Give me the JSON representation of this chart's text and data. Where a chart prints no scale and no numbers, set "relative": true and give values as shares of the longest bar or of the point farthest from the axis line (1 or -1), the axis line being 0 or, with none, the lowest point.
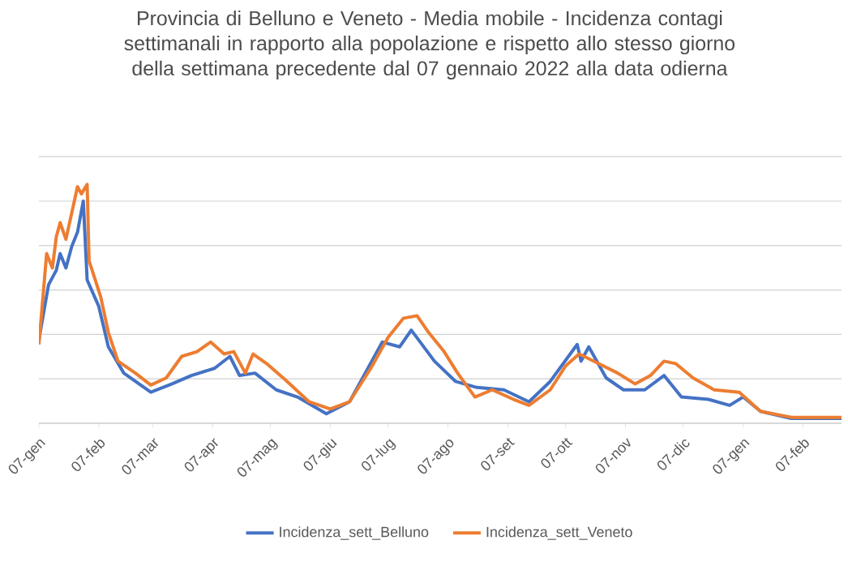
{
  "chart_data": {
    "type": "line",
    "title": "Provincia di Belluno e Veneto -  Media mobile - Incidenza contagi settimanali in rapporto alla popolazione e rispetto allo stesso giorno della settimana precedente dal 07 gennaio 2022 alla data odierna",
    "relative": true,
    "grid": "y",
    "legend": "bottom",
    "line_style": "solid",
    "marker": "none",
    "xlim": [
      "2022-01-07",
      "2023-02-27"
    ],
    "xticks": [
      {
        "value": "2022-01-07",
        "label": "07-gen"
      },
      {
        "value": "2022-02-07",
        "label": "07-feb"
      },
      {
        "value": "2022-03-07",
        "label": "07-mar"
      },
      {
        "value": "2022-04-07",
        "label": "07-apr"
      },
      {
        "value": "2022-05-07",
        "label": "07-mag"
      },
      {
        "value": "2022-06-07",
        "label": "07-giu"
      },
      {
        "value": "2022-07-07",
        "label": "07-lug"
      },
      {
        "value": "2022-08-07",
        "label": "07-ago"
      },
      {
        "value": "2022-09-07",
        "label": "07-set"
      },
      {
        "value": "2022-10-07",
        "label": "07-ott"
      },
      {
        "value": "2022-11-07",
        "label": "07-nov"
      },
      {
        "value": "2022-12-07",
        "label": "07-dic"
      },
      {
        "value": "2023-01-07",
        "label": "07-gen"
      },
      {
        "value": "2023-02-07",
        "label": "07-feb"
      }
    ],
    "series": [
      {
        "name": "Incidenza_sett_Belluno",
        "color": "#4472c4",
        "x": [
          "2022-01-07",
          "2022-01-12",
          "2022-01-16",
          "2022-01-18",
          "2022-01-21",
          "2022-01-24",
          "2022-01-27",
          "2022-01-30",
          "2022-02-01",
          "2022-02-07",
          "2022-02-12",
          "2022-02-20",
          "2022-03-06",
          "2022-03-17",
          "2022-03-27",
          "2022-04-08",
          "2022-04-16",
          "2022-04-21",
          "2022-04-29",
          "2022-05-10",
          "2022-05-21",
          "2022-06-05",
          "2022-06-17",
          "2022-07-04",
          "2022-07-13",
          "2022-07-19",
          "2022-07-31",
          "2022-08-11",
          "2022-08-22",
          "2022-09-05",
          "2022-09-18",
          "2022-09-29",
          "2022-10-13",
          "2022-10-15",
          "2022-10-19",
          "2022-10-28",
          "2022-11-06",
          "2022-11-17",
          "2022-11-27",
          "2022-12-06",
          "2022-12-20",
          "2022-12-31",
          "2023-01-07",
          "2023-01-16",
          "2023-02-01",
          "2023-02-27"
        ],
        "values": [
          0.35,
          0.58,
          0.64,
          0.71,
          0.65,
          0.74,
          0.8,
          0.93,
          0.6,
          0.49,
          0.32,
          0.21,
          0.13,
          0.165,
          0.2,
          0.23,
          0.28,
          0.2,
          0.21,
          0.14,
          0.11,
          0.04,
          0.09,
          0.34,
          0.32,
          0.39,
          0.26,
          0.175,
          0.15,
          0.14,
          0.09,
          0.175,
          0.33,
          0.26,
          0.32,
          0.19,
          0.14,
          0.14,
          0.2,
          0.11,
          0.1,
          0.075,
          0.11,
          0.05,
          0.02,
          0.02
        ]
      },
      {
        "name": "Incidenza_sett_Veneto",
        "color": "#ed7d31",
        "x": [
          "2022-01-07",
          "2022-01-11",
          "2022-01-14",
          "2022-01-16",
          "2022-01-18",
          "2022-01-21",
          "2022-01-24",
          "2022-01-27",
          "2022-01-29",
          "2022-02-01",
          "2022-02-02",
          "2022-02-08",
          "2022-02-12",
          "2022-02-17",
          "2022-02-26",
          "2022-03-06",
          "2022-03-14",
          "2022-03-22",
          "2022-03-30",
          "2022-04-06",
          "2022-04-13",
          "2022-04-18",
          "2022-04-24",
          "2022-04-28",
          "2022-05-05",
          "2022-05-15",
          "2022-05-27",
          "2022-06-07",
          "2022-06-17",
          "2022-06-28",
          "2022-07-07",
          "2022-07-15",
          "2022-07-22",
          "2022-07-28",
          "2022-08-05",
          "2022-08-12",
          "2022-08-21",
          "2022-08-30",
          "2022-09-10",
          "2022-09-18",
          "2022-09-29",
          "2022-10-07",
          "2022-10-14",
          "2022-10-24",
          "2022-11-03",
          "2022-11-12",
          "2022-11-20",
          "2022-11-27",
          "2022-12-03",
          "2022-12-12",
          "2022-12-23",
          "2023-01-05",
          "2023-01-16",
          "2023-02-01",
          "2023-02-27"
        ],
        "values": [
          0.33,
          0.71,
          0.65,
          0.78,
          0.84,
          0.77,
          0.88,
          0.99,
          0.96,
          1.0,
          0.68,
          0.53,
          0.38,
          0.26,
          0.21,
          0.16,
          0.19,
          0.28,
          0.3,
          0.34,
          0.29,
          0.3,
          0.21,
          0.29,
          0.25,
          0.18,
          0.09,
          0.06,
          0.09,
          0.23,
          0.36,
          0.44,
          0.45,
          0.38,
          0.3,
          0.21,
          0.11,
          0.14,
          0.1,
          0.075,
          0.14,
          0.24,
          0.29,
          0.25,
          0.21,
          0.165,
          0.2,
          0.26,
          0.25,
          0.19,
          0.14,
          0.13,
          0.05,
          0.025,
          0.025
        ]
      }
    ]
  }
}
